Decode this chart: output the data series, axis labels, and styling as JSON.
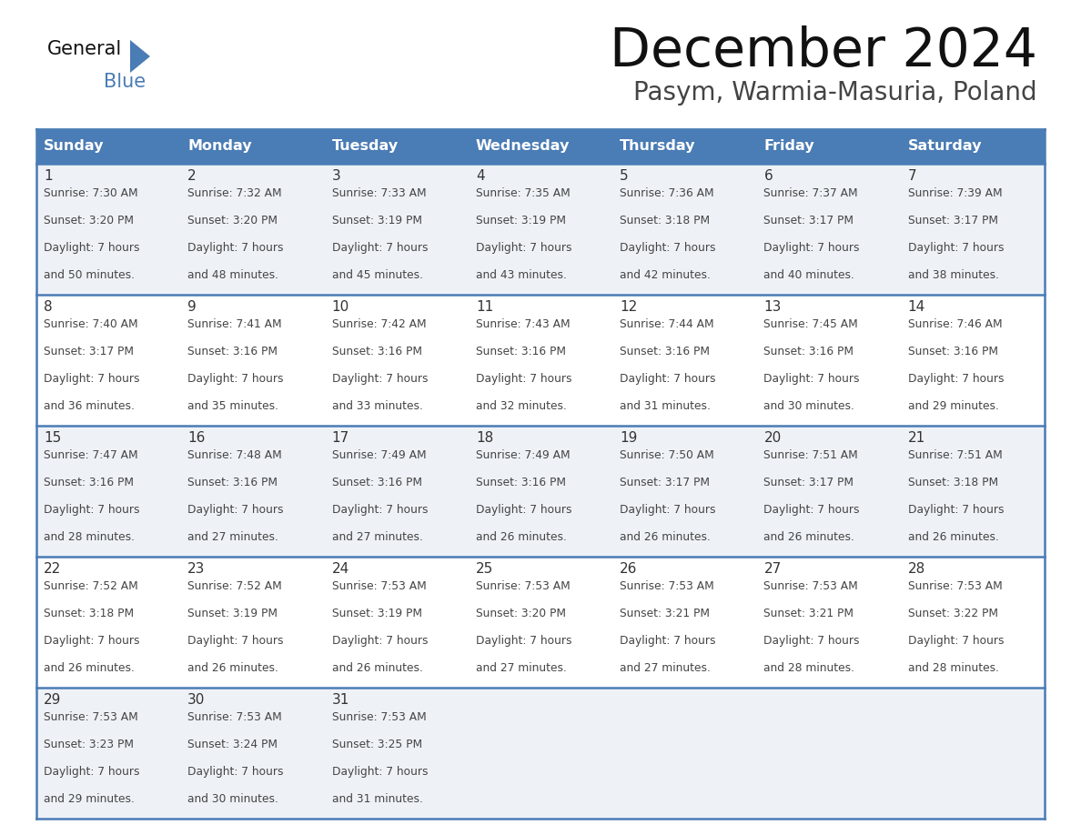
{
  "title": "December 2024",
  "subtitle": "Pasym, Warmia-Masuria, Poland",
  "days_of_week": [
    "Sunday",
    "Monday",
    "Tuesday",
    "Wednesday",
    "Thursday",
    "Friday",
    "Saturday"
  ],
  "header_bg": "#4a7cb5",
  "header_text_color": "#ffffff",
  "row_bg_odd": "#eef2f7",
  "row_bg_even": "#ffffff",
  "border_color": "#4a7cb5",
  "day_num_color": "#333333",
  "text_color": "#444444",
  "title_color": "#111111",
  "subtitle_color": "#444444",
  "logo_general_color": "#111111",
  "logo_blue_color": "#4a7cb5",
  "logo_triangle_color": "#4a7cb5",
  "calendar_data": [
    [
      {
        "day": "1",
        "sunrise": "7:30 AM",
        "sunset": "3:20 PM",
        "daylight_h": "7 hours",
        "daylight_m": "and 50 minutes."
      },
      {
        "day": "2",
        "sunrise": "7:32 AM",
        "sunset": "3:20 PM",
        "daylight_h": "7 hours",
        "daylight_m": "and 48 minutes."
      },
      {
        "day": "3",
        "sunrise": "7:33 AM",
        "sunset": "3:19 PM",
        "daylight_h": "7 hours",
        "daylight_m": "and 45 minutes."
      },
      {
        "day": "4",
        "sunrise": "7:35 AM",
        "sunset": "3:19 PM",
        "daylight_h": "7 hours",
        "daylight_m": "and 43 minutes."
      },
      {
        "day": "5",
        "sunrise": "7:36 AM",
        "sunset": "3:18 PM",
        "daylight_h": "7 hours",
        "daylight_m": "and 42 minutes."
      },
      {
        "day": "6",
        "sunrise": "7:37 AM",
        "sunset": "3:17 PM",
        "daylight_h": "7 hours",
        "daylight_m": "and 40 minutes."
      },
      {
        "day": "7",
        "sunrise": "7:39 AM",
        "sunset": "3:17 PM",
        "daylight_h": "7 hours",
        "daylight_m": "and 38 minutes."
      }
    ],
    [
      {
        "day": "8",
        "sunrise": "7:40 AM",
        "sunset": "3:17 PM",
        "daylight_h": "7 hours",
        "daylight_m": "and 36 minutes."
      },
      {
        "day": "9",
        "sunrise": "7:41 AM",
        "sunset": "3:16 PM",
        "daylight_h": "7 hours",
        "daylight_m": "and 35 minutes."
      },
      {
        "day": "10",
        "sunrise": "7:42 AM",
        "sunset": "3:16 PM",
        "daylight_h": "7 hours",
        "daylight_m": "and 33 minutes."
      },
      {
        "day": "11",
        "sunrise": "7:43 AM",
        "sunset": "3:16 PM",
        "daylight_h": "7 hours",
        "daylight_m": "and 32 minutes."
      },
      {
        "day": "12",
        "sunrise": "7:44 AM",
        "sunset": "3:16 PM",
        "daylight_h": "7 hours",
        "daylight_m": "and 31 minutes."
      },
      {
        "day": "13",
        "sunrise": "7:45 AM",
        "sunset": "3:16 PM",
        "daylight_h": "7 hours",
        "daylight_m": "and 30 minutes."
      },
      {
        "day": "14",
        "sunrise": "7:46 AM",
        "sunset": "3:16 PM",
        "daylight_h": "7 hours",
        "daylight_m": "and 29 minutes."
      }
    ],
    [
      {
        "day": "15",
        "sunrise": "7:47 AM",
        "sunset": "3:16 PM",
        "daylight_h": "7 hours",
        "daylight_m": "and 28 minutes."
      },
      {
        "day": "16",
        "sunrise": "7:48 AM",
        "sunset": "3:16 PM",
        "daylight_h": "7 hours",
        "daylight_m": "and 27 minutes."
      },
      {
        "day": "17",
        "sunrise": "7:49 AM",
        "sunset": "3:16 PM",
        "daylight_h": "7 hours",
        "daylight_m": "and 27 minutes."
      },
      {
        "day": "18",
        "sunrise": "7:49 AM",
        "sunset": "3:16 PM",
        "daylight_h": "7 hours",
        "daylight_m": "and 26 minutes."
      },
      {
        "day": "19",
        "sunrise": "7:50 AM",
        "sunset": "3:17 PM",
        "daylight_h": "7 hours",
        "daylight_m": "and 26 minutes."
      },
      {
        "day": "20",
        "sunrise": "7:51 AM",
        "sunset": "3:17 PM",
        "daylight_h": "7 hours",
        "daylight_m": "and 26 minutes."
      },
      {
        "day": "21",
        "sunrise": "7:51 AM",
        "sunset": "3:18 PM",
        "daylight_h": "7 hours",
        "daylight_m": "and 26 minutes."
      }
    ],
    [
      {
        "day": "22",
        "sunrise": "7:52 AM",
        "sunset": "3:18 PM",
        "daylight_h": "7 hours",
        "daylight_m": "and 26 minutes."
      },
      {
        "day": "23",
        "sunrise": "7:52 AM",
        "sunset": "3:19 PM",
        "daylight_h": "7 hours",
        "daylight_m": "and 26 minutes."
      },
      {
        "day": "24",
        "sunrise": "7:53 AM",
        "sunset": "3:19 PM",
        "daylight_h": "7 hours",
        "daylight_m": "and 26 minutes."
      },
      {
        "day": "25",
        "sunrise": "7:53 AM",
        "sunset": "3:20 PM",
        "daylight_h": "7 hours",
        "daylight_m": "and 27 minutes."
      },
      {
        "day": "26",
        "sunrise": "7:53 AM",
        "sunset": "3:21 PM",
        "daylight_h": "7 hours",
        "daylight_m": "and 27 minutes."
      },
      {
        "day": "27",
        "sunrise": "7:53 AM",
        "sunset": "3:21 PM",
        "daylight_h": "7 hours",
        "daylight_m": "and 28 minutes."
      },
      {
        "day": "28",
        "sunrise": "7:53 AM",
        "sunset": "3:22 PM",
        "daylight_h": "7 hours",
        "daylight_m": "and 28 minutes."
      }
    ],
    [
      {
        "day": "29",
        "sunrise": "7:53 AM",
        "sunset": "3:23 PM",
        "daylight_h": "7 hours",
        "daylight_m": "and 29 minutes."
      },
      {
        "day": "30",
        "sunrise": "7:53 AM",
        "sunset": "3:24 PM",
        "daylight_h": "7 hours",
        "daylight_m": "and 30 minutes."
      },
      {
        "day": "31",
        "sunrise": "7:53 AM",
        "sunset": "3:25 PM",
        "daylight_h": "7 hours",
        "daylight_m": "and 31 minutes."
      },
      null,
      null,
      null,
      null
    ]
  ]
}
